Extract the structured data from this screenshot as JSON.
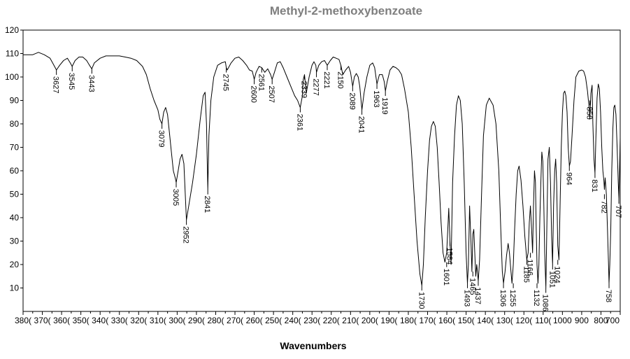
{
  "chart_data": {
    "type": "line",
    "title": "Methyl-2-methoxybenzoate",
    "xlabel": "Wavenumbers",
    "ylabel": "",
    "xlim": [
      3800,
      700
    ],
    "ylim": [
      0,
      120
    ],
    "x_reversed": true,
    "grid": false,
    "legend": "none",
    "x_ticks": [
      3800,
      3700,
      3600,
      3500,
      3400,
      3300,
      3200,
      3100,
      3000,
      2900,
      2800,
      2700,
      2600,
      2500,
      2400,
      2300,
      2200,
      2100,
      2000,
      1900,
      1800,
      1700,
      1600,
      1500,
      1400,
      1300,
      1200,
      1100,
      1000,
      900,
      800,
      700
    ],
    "x_tick_labels": [
      "380(",
      "370(",
      "360(",
      "350(",
      "340(",
      "330(",
      "320(",
      "310(",
      "300(",
      "290(",
      "280(",
      "270(",
      "260(",
      "250(",
      "240(",
      "230(",
      "220(",
      "210(",
      "200(",
      "190(",
      "180(",
      "170(",
      "160(",
      "150(",
      "140(",
      "130(",
      "120(",
      "110(",
      "1000",
      "900",
      "800",
      "700"
    ],
    "y_ticks": [
      10,
      20,
      30,
      40,
      50,
      60,
      70,
      80,
      90,
      100,
      110,
      120
    ],
    "y_tick_labels": [
      "10",
      "20",
      "30",
      "40",
      "50",
      "60",
      "70",
      "80",
      "90",
      "100",
      "110",
      "120"
    ],
    "series": [
      {
        "color": "#000000",
        "x": [
          3800,
          3750,
          3720,
          3690,
          3660,
          3640,
          3627,
          3610,
          3590,
          3570,
          3555,
          3545,
          3530,
          3510,
          3490,
          3470,
          3455,
          3443,
          3430,
          3400,
          3370,
          3340,
          3300,
          3270,
          3240,
          3210,
          3180,
          3160,
          3140,
          3120,
          3100,
          3090,
          3079,
          3070,
          3060,
          3050,
          3040,
          3030,
          3020,
          3010,
          3005,
          2995,
          2985,
          2975,
          2965,
          2952,
          2940,
          2920,
          2900,
          2880,
          2865,
          2855,
          2848,
          2841,
          2835,
          2825,
          2810,
          2790,
          2770,
          2750,
          2745,
          2740,
          2720,
          2700,
          2680,
          2660,
          2640,
          2625,
          2610,
          2600,
          2590,
          2575,
          2561,
          2545,
          2530,
          2515,
          2507,
          2495,
          2480,
          2465,
          2450,
          2430,
          2410,
          2390,
          2375,
          2361,
          2350,
          2345,
          2339,
          2330,
          2315,
          2300,
          2290,
          2280,
          2277,
          2265,
          2250,
          2235,
          2221,
          2205,
          2190,
          2175,
          2160,
          2150,
          2140,
          2125,
          2110,
          2100,
          2089,
          2080,
          2070,
          2060,
          2052,
          2041,
          2030,
          2015,
          2000,
          1985,
          1975,
          1963,
          1950,
          1935,
          1925,
          1919,
          1910,
          1895,
          1880,
          1865,
          1850,
          1835,
          1820,
          1800,
          1785,
          1770,
          1755,
          1740,
          1730,
          1722,
          1712,
          1700,
          1690,
          1680,
          1670,
          1660,
          1650,
          1640,
          1630,
          1620,
          1610,
          1601,
          1595,
          1590,
          1584,
          1578,
          1570,
          1560,
          1550,
          1540,
          1530,
          1520,
          1510,
          1500,
          1493,
          1488,
          1482,
          1475,
          1470,
          1465,
          1460,
          1455,
          1450,
          1445,
          1437,
          1430,
          1420,
          1410,
          1395,
          1380,
          1360,
          1345,
          1330,
          1320,
          1312,
          1306,
          1298,
          1290,
          1282,
          1275,
          1268,
          1262,
          1255,
          1248,
          1240,
          1232,
          1225,
          1215,
          1205,
          1195,
          1185,
          1178,
          1172,
          1166,
          1160,
          1155,
          1150,
          1145,
          1140,
          1136,
          1132,
          1127,
          1122,
          1117,
          1112,
          1107,
          1102,
          1097,
          1092,
          1086,
          1080,
          1075,
          1068,
          1062,
          1056,
          1051,
          1046,
          1040,
          1035,
          1030,
          1024,
          1018,
          1012,
          1006,
          1000,
          994,
          988,
          982,
          976,
          970,
          964,
          958,
          950,
          940,
          930,
          915,
          900,
          890,
          880,
          870,
          865,
          860,
          858,
          852,
          846,
          842,
          836,
          831,
          826,
          820,
          814,
          808,
          802,
          796,
          790,
          785,
          782,
          778,
          772,
          766,
          760,
          758,
          754,
          749,
          744,
          738,
          733,
          728,
          722,
          716,
          710,
          707,
          702,
          700
        ],
        "y": [
          109.5,
          109.5,
          110.5,
          109.5,
          108,
          105,
          103,
          105,
          107,
          108,
          106,
          104.5,
          107,
          108.5,
          108.5,
          107,
          105,
          103.5,
          106,
          108,
          109,
          109,
          109,
          108.5,
          108,
          107,
          104.5,
          101,
          95,
          90,
          86,
          82,
          80,
          85,
          87,
          84,
          76,
          68,
          60,
          57,
          55,
          60,
          65,
          67,
          63,
          39,
          45,
          55,
          67,
          82,
          92,
          93.5,
          80,
          52,
          75,
          90,
          100,
          105,
          106,
          106.5,
          104,
          103,
          106,
          108,
          108.5,
          107,
          105,
          103,
          102.5,
          99,
          102,
          104.5,
          104,
          102,
          103.5,
          101,
          99,
          102,
          106,
          106.5,
          104,
          100,
          96,
          92,
          90,
          87,
          92,
          99,
          101,
          93,
          100,
          105,
          106.5,
          105,
          102,
          105,
          106.5,
          107,
          105,
          107,
          108.5,
          108,
          107.5,
          105,
          101,
          103,
          104.5,
          102,
          96,
          100,
          101.5,
          100,
          96,
          86,
          93,
          100,
          105,
          106,
          104,
          97,
          101,
          101,
          98,
          94,
          98,
          103,
          104.5,
          104,
          103,
          101,
          95,
          85,
          70,
          50,
          30,
          16,
          11,
          20,
          40,
          60,
          73,
          79,
          81,
          79,
          70,
          55,
          38,
          25,
          21,
          25,
          35,
          44,
          30,
          20,
          55,
          75,
          88,
          92,
          90,
          80,
          55,
          25,
          12,
          20,
          45,
          30,
          17,
          33,
          35,
          25,
          15,
          20,
          13,
          22,
          50,
          75,
          88,
          91,
          88,
          80,
          60,
          35,
          17,
          12,
          17,
          24,
          29,
          25,
          18,
          12,
          20,
          35,
          50,
          60,
          62,
          56,
          45,
          32,
          22,
          25,
          38,
          45,
          35,
          25,
          45,
          60,
          55,
          35,
          20,
          12,
          20,
          40,
          55,
          68,
          64,
          48,
          25,
          10,
          40,
          65,
          70,
          55,
          32,
          20,
          45,
          60,
          65,
          55,
          28,
          22,
          45,
          70,
          85,
          93,
          94,
          92,
          85,
          70,
          62,
          64,
          75,
          90,
          100,
          102.5,
          103,
          102.5,
          100,
          94,
          90,
          86,
          82,
          93,
          96.5,
          80,
          65,
          59,
          75,
          91,
          97,
          95,
          85,
          70,
          60,
          56,
          52,
          57,
          50,
          35,
          18,
          12,
          20,
          35,
          60,
          78,
          87,
          88,
          84,
          70,
          55,
          48,
          65,
          74
        ]
      }
    ],
    "peak_labels": [
      {
        "x": 3627,
        "y": 103,
        "text": "3627"
      },
      {
        "x": 3545,
        "y": 104.5,
        "text": "3545"
      },
      {
        "x": 3443,
        "y": 103.5,
        "text": "3443"
      },
      {
        "x": 3079,
        "y": 80,
        "text": "3079"
      },
      {
        "x": 3005,
        "y": 55,
        "text": "3005"
      },
      {
        "x": 2952,
        "y": 39,
        "text": "2952"
      },
      {
        "x": 2841,
        "y": 52,
        "text": "2841"
      },
      {
        "x": 2745,
        "y": 104,
        "text": "2745"
      },
      {
        "x": 2600,
        "y": 99,
        "text": "2600"
      },
      {
        "x": 2561,
        "y": 104,
        "text": "2561"
      },
      {
        "x": 2507,
        "y": 99,
        "text": "2507"
      },
      {
        "x": 2361,
        "y": 87,
        "text": "2361"
      },
      {
        "x": 2339,
        "y": 101,
        "text": "2339"
      },
      {
        "x": 2277,
        "y": 102,
        "text": "2277"
      },
      {
        "x": 2221,
        "y": 105,
        "text": "2221"
      },
      {
        "x": 2150,
        "y": 105,
        "text": "2150"
      },
      {
        "x": 2089,
        "y": 96,
        "text": "2089"
      },
      {
        "x": 2041,
        "y": 86,
        "text": "2041"
      },
      {
        "x": 1963,
        "y": 97,
        "text": "1963"
      },
      {
        "x": 1919,
        "y": 94,
        "text": "1919"
      },
      {
        "x": 1730,
        "y": 11,
        "text": "1730"
      },
      {
        "x": 1601,
        "y": 21,
        "text": "1601"
      },
      {
        "x": 1584,
        "y": 30,
        "text": "1584"
      },
      {
        "x": 1493,
        "y": 12,
        "text": "1493"
      },
      {
        "x": 1465,
        "y": 17,
        "text": "1465"
      },
      {
        "x": 1437,
        "y": 13,
        "text": "1437"
      },
      {
        "x": 1306,
        "y": 12,
        "text": "1306"
      },
      {
        "x": 1255,
        "y": 12,
        "text": "1255"
      },
      {
        "x": 1185,
        "y": 22,
        "text": "1185"
      },
      {
        "x": 1166,
        "y": 25,
        "text": "1166"
      },
      {
        "x": 1132,
        "y": 12,
        "text": "1132"
      },
      {
        "x": 1086,
        "y": 10,
        "text": "1086"
      },
      {
        "x": 1051,
        "y": 20,
        "text": "1051"
      },
      {
        "x": 1024,
        "y": 22,
        "text": "1024"
      },
      {
        "x": 964,
        "y": 62,
        "text": "964"
      },
      {
        "x": 858,
        "y": 90,
        "text": "858"
      },
      {
        "x": 831,
        "y": 59,
        "text": "831"
      },
      {
        "x": 782,
        "y": 50,
        "text": "782"
      },
      {
        "x": 758,
        "y": 12,
        "text": "758"
      },
      {
        "x": 707,
        "y": 48,
        "text": "707"
      }
    ]
  }
}
